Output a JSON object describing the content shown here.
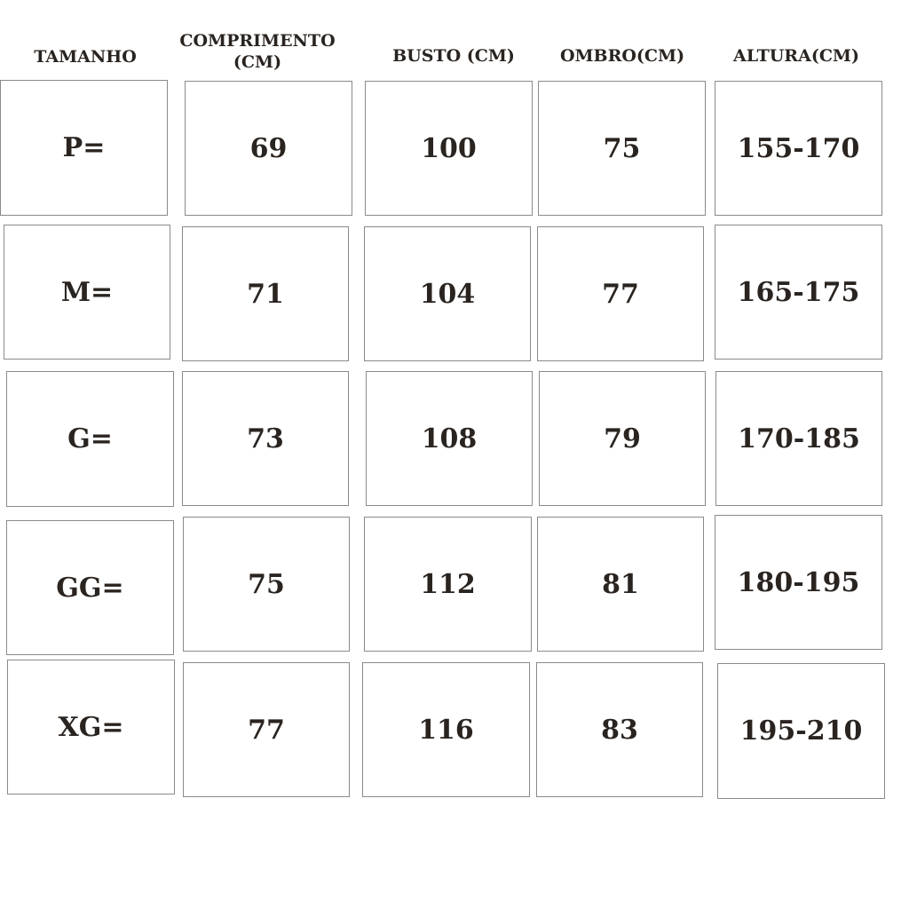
{
  "headers": [
    "TAMANHO",
    "COMPRIMENTO\n(CM)",
    "BUSTO (CM)",
    "OMBRO(CM)",
    "ALTURA(CM)"
  ],
  "header_lines": {
    "comprimento_1": "COMPRIMENTO",
    "comprimento_2": "(CM)"
  },
  "rows": [
    [
      "P=",
      "69",
      "100",
      "75",
      "155-170"
    ],
    [
      "M=",
      "71",
      "104",
      "77",
      "165-175"
    ],
    [
      "G=",
      "73",
      "108",
      "79",
      "170-185"
    ],
    [
      "GG=",
      "75",
      "112",
      "81",
      "180-195"
    ],
    [
      "XG=",
      "77",
      "116",
      "83",
      "195-210"
    ]
  ],
  "colors": {
    "text": "#2a2420",
    "border": "#8a8a8a",
    "background": "#ffffff"
  }
}
